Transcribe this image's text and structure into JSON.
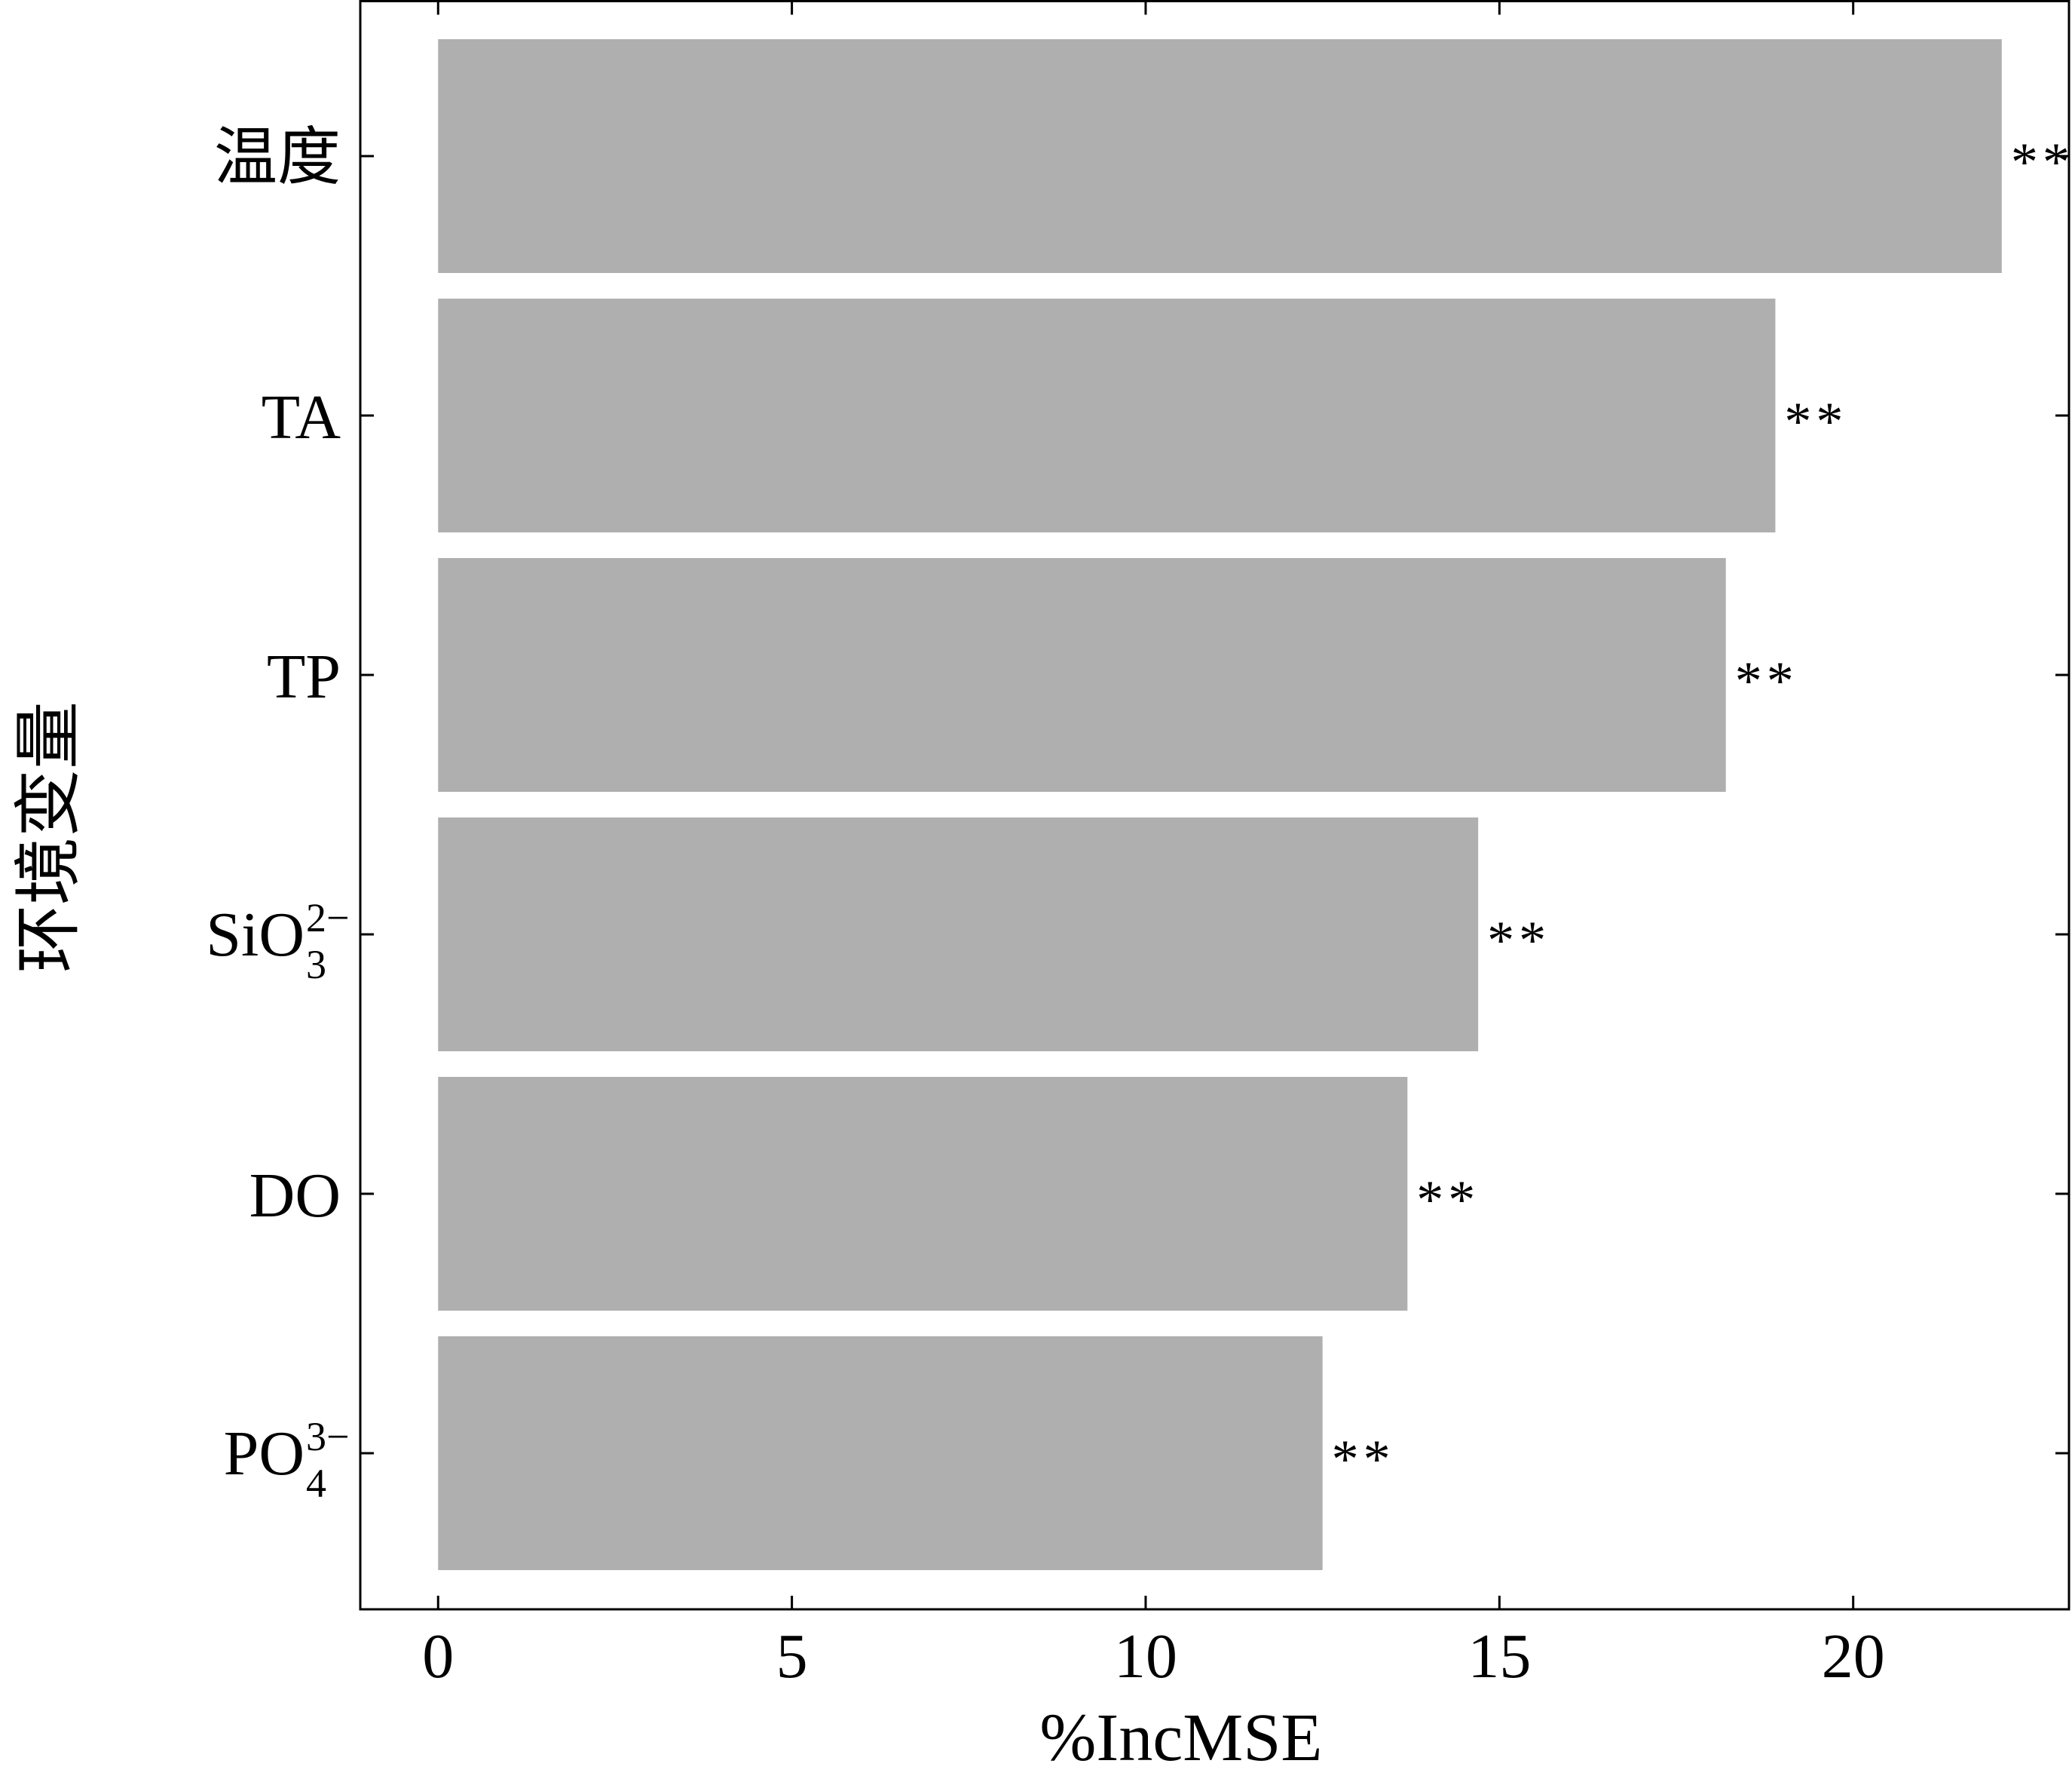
{
  "chart_data": {
    "type": "bar",
    "orientation": "horizontal",
    "categories": [
      {
        "label": "温度",
        "sub": "",
        "sup": ""
      },
      {
        "label": "TA",
        "sub": "",
        "sup": ""
      },
      {
        "label": "TP",
        "sub": "",
        "sup": ""
      },
      {
        "label": "SiO",
        "sub": "3",
        "sup": "2−"
      },
      {
        "label": "DO",
        "sub": "",
        "sup": ""
      },
      {
        "label": "PO",
        "sub": "4",
        "sup": "3−"
      }
    ],
    "values": [
      22.1,
      18.9,
      18.2,
      14.7,
      13.7,
      12.5
    ],
    "data_labels": [
      "**",
      "**",
      "**",
      "**",
      "**",
      "**"
    ],
    "xlabel": "%IncMSE",
    "ylabel": "环境变量",
    "xlim": [
      -1.1,
      23.05
    ],
    "xticks": [
      0,
      5,
      10,
      15,
      20
    ],
    "bar_color": "#afafaf",
    "grid": false,
    "legend": "none"
  }
}
